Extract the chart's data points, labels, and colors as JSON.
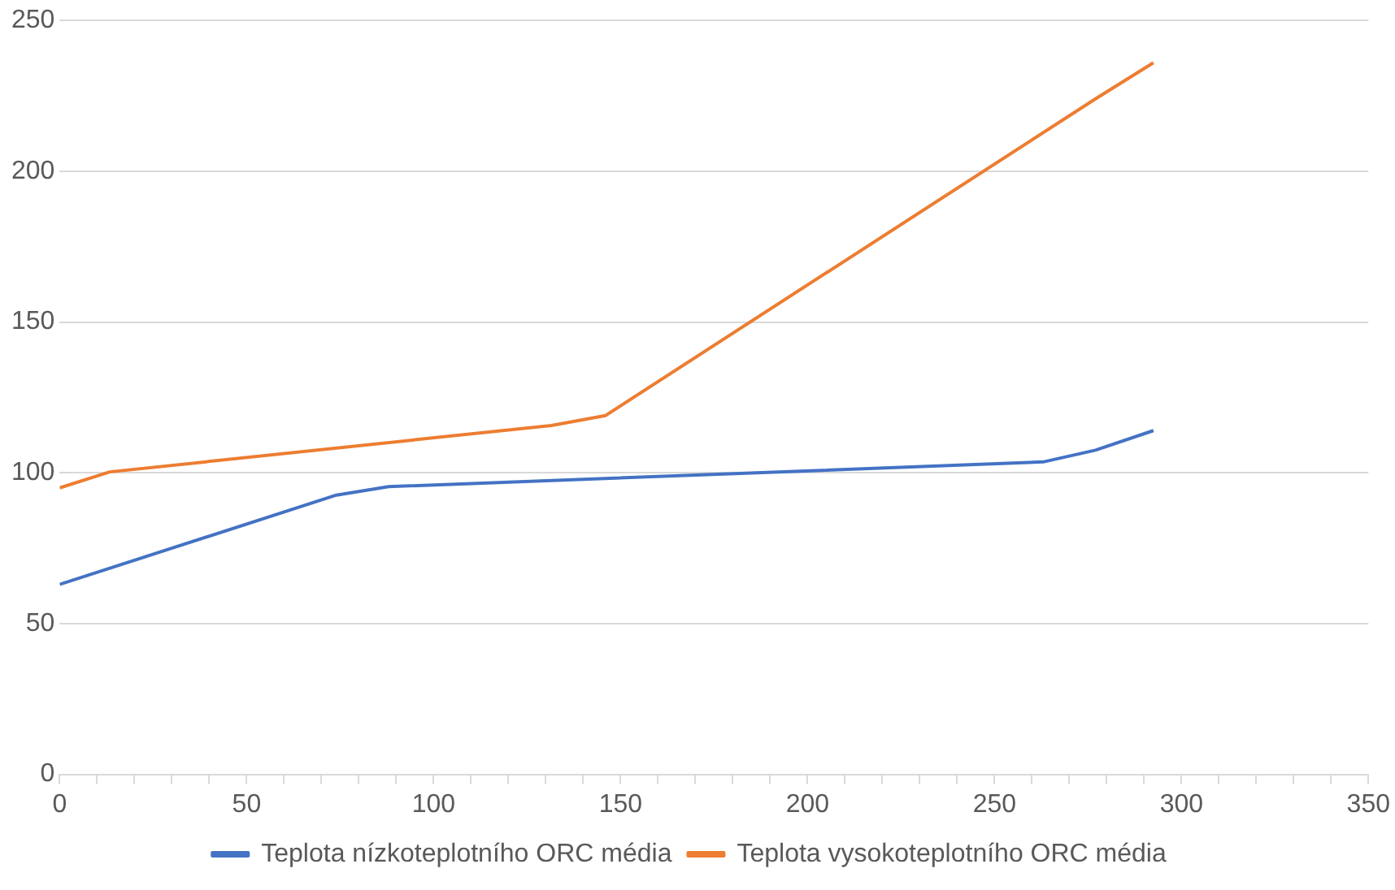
{
  "chart_data": {
    "type": "line",
    "xlim": [
      0,
      350
    ],
    "ylim": [
      0,
      250
    ],
    "xticks": [
      0,
      {
        "value": 10,
        "label": null
      },
      {
        "value": 20,
        "label": null
      },
      {
        "value": 30,
        "label": null
      },
      {
        "value": 40,
        "label": null
      },
      50,
      {
        "value": 60,
        "label": null
      },
      {
        "value": 70,
        "label": null
      },
      {
        "value": 80,
        "label": null
      },
      {
        "value": 90,
        "label": null
      },
      100,
      {
        "value": 110,
        "label": null
      },
      {
        "value": 120,
        "label": null
      },
      {
        "value": 130,
        "label": null
      },
      {
        "value": 140,
        "label": null
      },
      150,
      {
        "value": 160,
        "label": null
      },
      {
        "value": 170,
        "label": null
      },
      {
        "value": 180,
        "label": null
      },
      {
        "value": 190,
        "label": null
      },
      200,
      {
        "value": 210,
        "label": null
      },
      {
        "value": 220,
        "label": null
      },
      {
        "value": 230,
        "label": null
      },
      {
        "value": 240,
        "label": null
      },
      250,
      {
        "value": 260,
        "label": null
      },
      {
        "value": 270,
        "label": null
      },
      {
        "value": 280,
        "label": null
      },
      {
        "value": 290,
        "label": null
      },
      300,
      {
        "value": 310,
        "label": null
      },
      {
        "value": 320,
        "label": null
      },
      {
        "value": 330,
        "label": null
      },
      {
        "value": 340,
        "label": null
      },
      350
    ],
    "yticks": [
      0,
      50,
      100,
      150,
      200,
      250
    ],
    "grid": "y",
    "legend": "bottom",
    "marker": "none",
    "series": [
      {
        "name": "Teplota nízkoteplotního ORC média",
        "color": "#4472c4",
        "x": [
          0,
          74,
          88,
          263,
          277,
          292.5
        ],
        "values": [
          63,
          92.6,
          95.4,
          103.6,
          107.5,
          114
        ]
      },
      {
        "name": "Teplota vysokoteplotního ORC média",
        "color": "#ed7d31",
        "x": [
          0,
          13.4,
          131.5,
          146,
          277,
          292.5
        ],
        "values": [
          95,
          100.3,
          115.7,
          119,
          224,
          236
        ]
      }
    ]
  }
}
